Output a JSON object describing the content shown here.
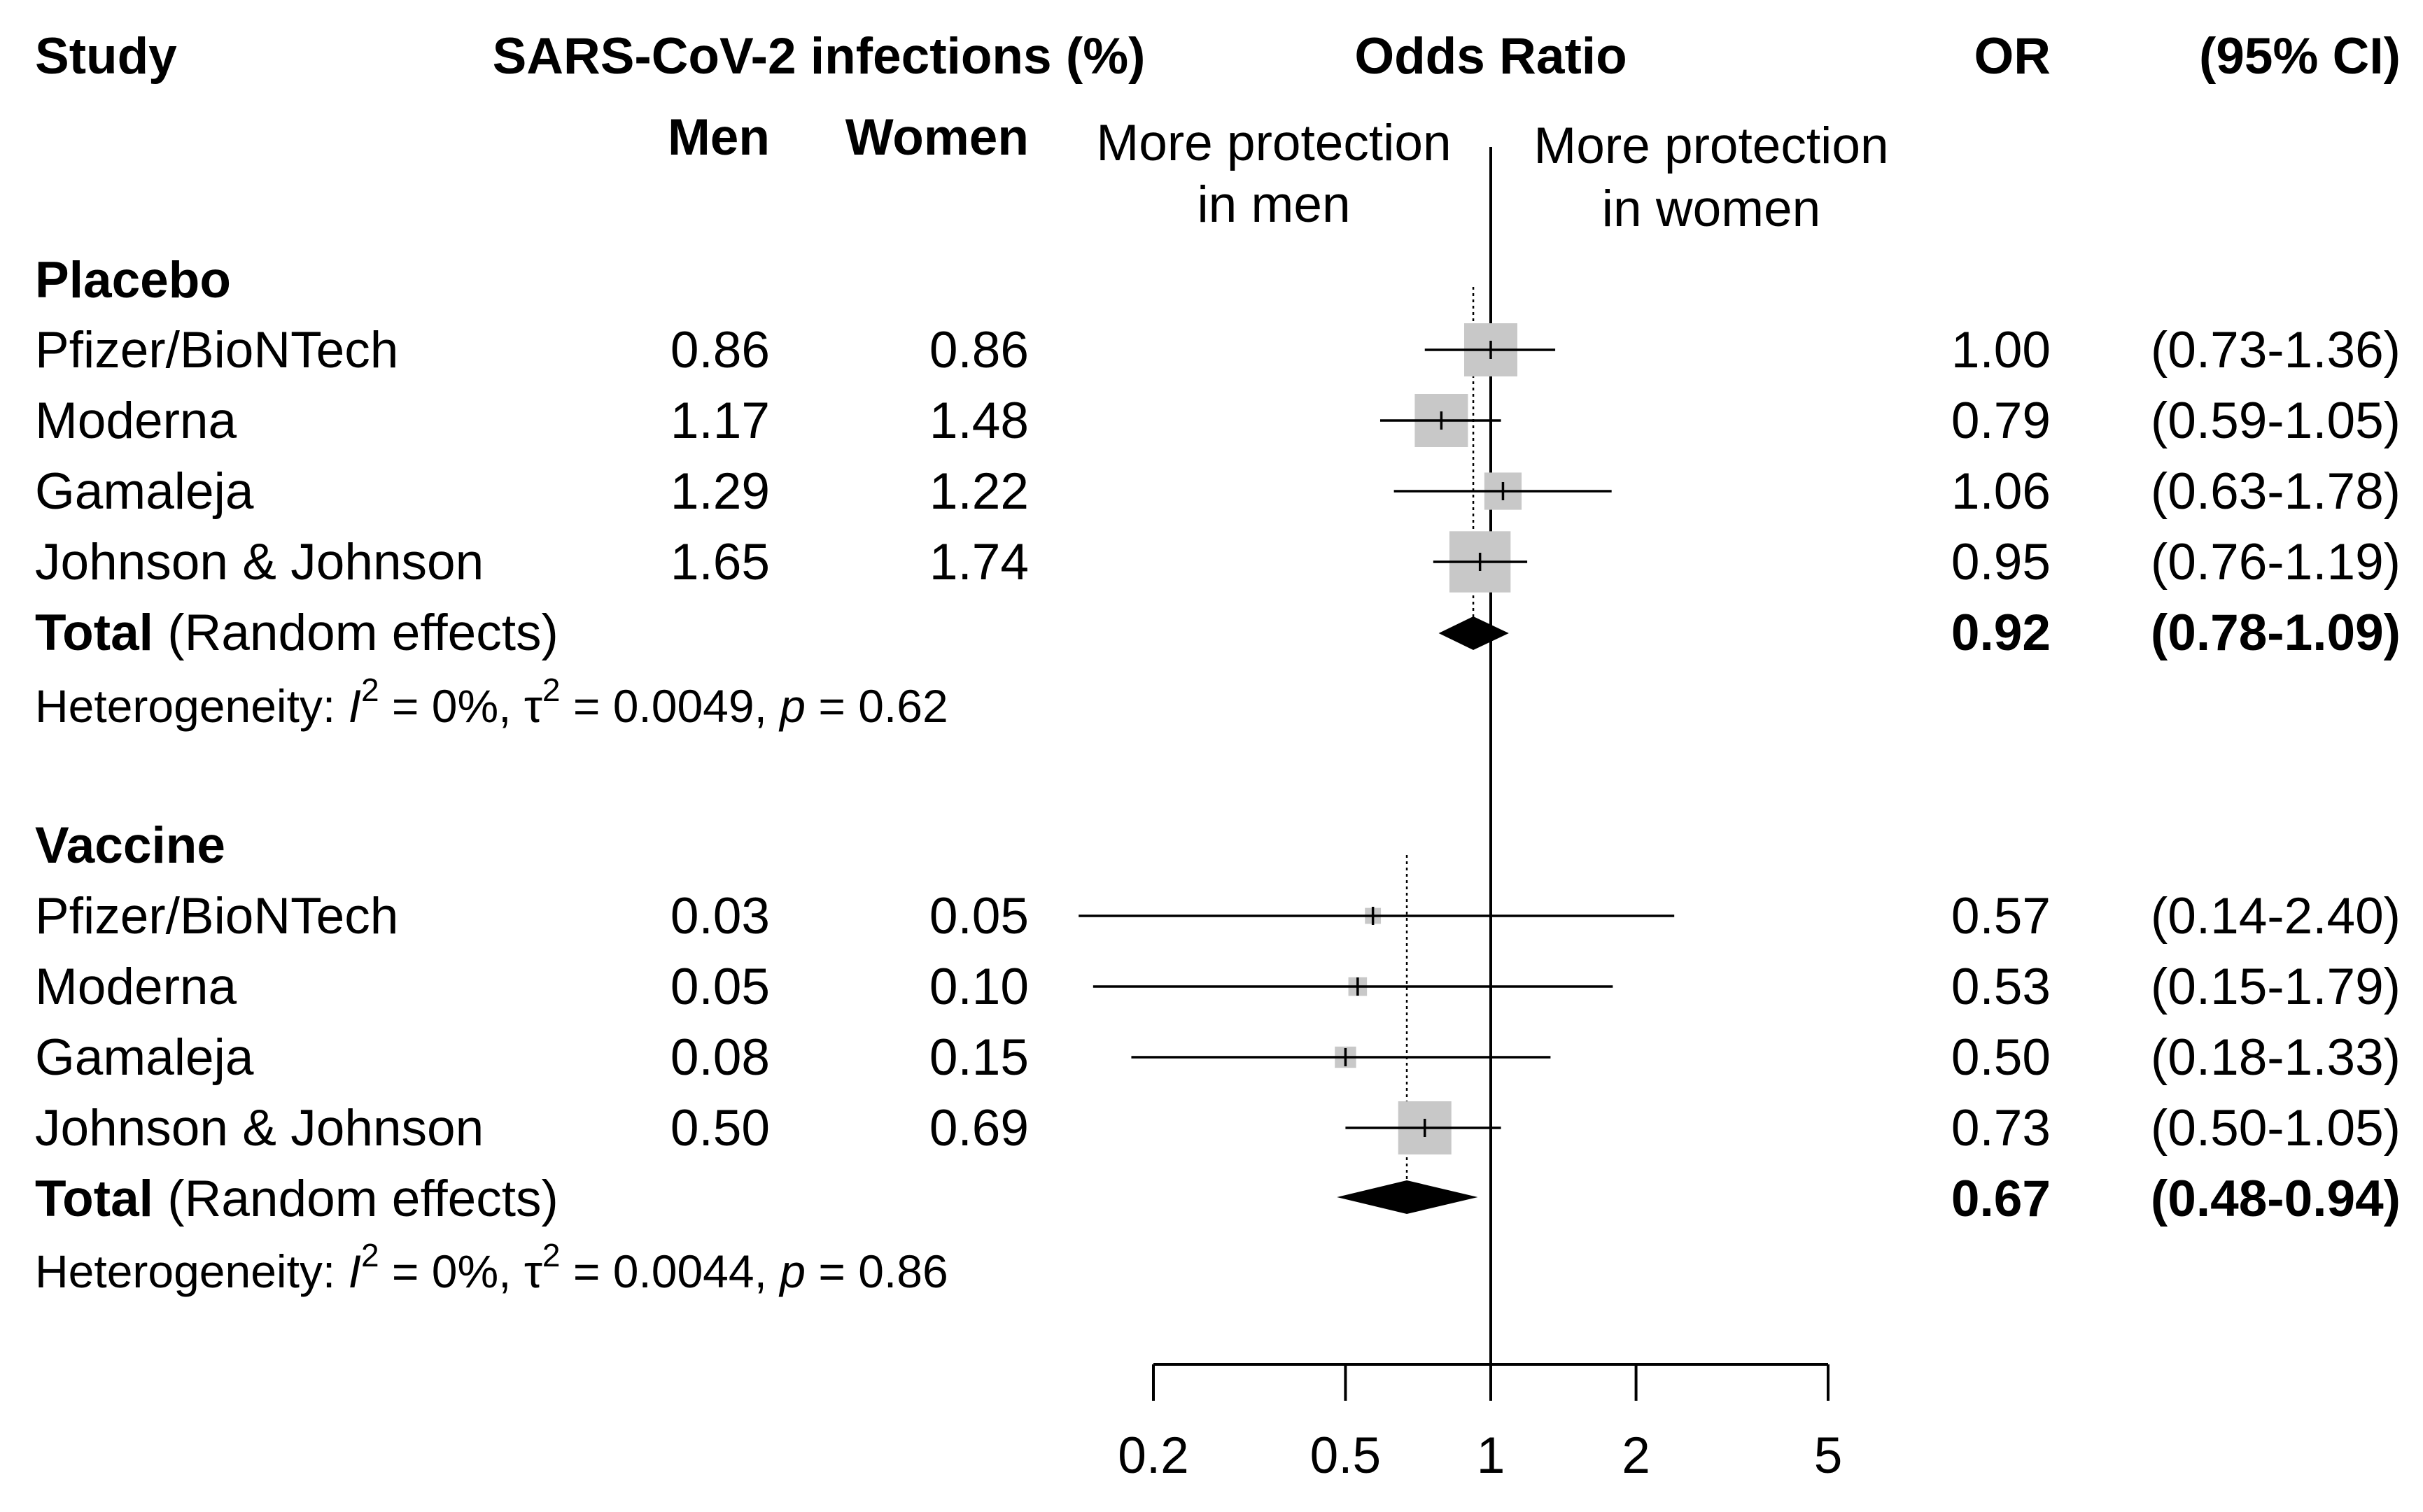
{
  "header": {
    "study": "Study",
    "infections": "SARS-CoV-2 infections (%)",
    "odds_ratio": "Odds Ratio",
    "or": "OR",
    "ci": "(95% CI)",
    "men": "Men",
    "women": "Women",
    "left_line1": "More protection",
    "left_line2": "in men",
    "right_line1": "More protection",
    "right_line2": "in women"
  },
  "groups": [
    {
      "name": "Placebo",
      "studies": [
        {
          "study": "Pfizer/BioNTech",
          "men": "0.86",
          "women": "0.86",
          "or": "1.00",
          "ci": "(0.73-1.36)"
        },
        {
          "study": "Moderna",
          "men": "1.17",
          "women": "1.48",
          "or": "0.79",
          "ci": "(0.59-1.05)"
        },
        {
          "study": "Gamaleja",
          "men": "1.29",
          "women": "1.22",
          "or": "1.06",
          "ci": "(0.63-1.78)"
        },
        {
          "study": "Johnson & Johnson",
          "men": "1.65",
          "women": "1.74",
          "or": "0.95",
          "ci": "(0.76-1.19)"
        }
      ],
      "total_label": "Total",
      "total_suffix": "(Random effects)",
      "total_or": "0.92",
      "total_ci": "(0.78-1.09)",
      "het_prefix": "Heterogeneity: ",
      "het_i": "I",
      "het_two": "2",
      "het_mid": " = 0%, τ",
      "het_tau_val": " = 0.0049, ",
      "het_p": "p",
      "het_pval": " = 0.62"
    },
    {
      "name": "Vaccine",
      "studies": [
        {
          "study": "Pfizer/BioNTech",
          "men": "0.03",
          "women": "0.05",
          "or": "0.57",
          "ci": "(0.14-2.40)"
        },
        {
          "study": "Moderna",
          "men": "0.05",
          "women": "0.10",
          "or": "0.53",
          "ci": "(0.15-1.79)"
        },
        {
          "study": "Gamaleja",
          "men": "0.08",
          "women": "0.15",
          "or": "0.50",
          "ci": "(0.18-1.33)"
        },
        {
          "study": "Johnson & Johnson",
          "men": "0.50",
          "women": "0.69",
          "or": "0.73",
          "ci": "(0.50-1.05)"
        }
      ],
      "total_label": "Total",
      "total_suffix": "(Random effects)",
      "total_or": "0.67",
      "total_ci": "(0.48-0.94)",
      "het_prefix": "Heterogeneity: ",
      "het_i": "I",
      "het_two": "2",
      "het_mid": " = 0%, τ",
      "het_tau_val": " = 0.0044, ",
      "het_p": "p",
      "het_pval": " = 0.86"
    }
  ],
  "chart_data": {
    "type": "forest",
    "x_scale": "log",
    "xlim": [
      0.2,
      5
    ],
    "reference_line": 1,
    "x_ticks": [
      0.2,
      0.5,
      1,
      2,
      5
    ],
    "x_tick_labels": [
      "0.2",
      "0.5",
      "1",
      "2",
      "5"
    ],
    "series": [
      {
        "name": "Placebo",
        "studies": [
          {
            "label": "Pfizer/BioNTech",
            "or": 1.0,
            "lo": 0.73,
            "hi": 1.36,
            "weight": 1.0
          },
          {
            "label": "Moderna",
            "or": 0.79,
            "lo": 0.59,
            "hi": 1.05,
            "weight": 1.0
          },
          {
            "label": "Gamaleja",
            "or": 1.06,
            "lo": 0.63,
            "hi": 1.78,
            "weight": 0.7
          },
          {
            "label": "Johnson & Johnson",
            "or": 0.95,
            "lo": 0.76,
            "hi": 1.19,
            "weight": 1.15
          }
        ],
        "pooled": {
          "or": 0.92,
          "lo": 0.78,
          "hi": 1.09
        }
      },
      {
        "name": "Vaccine",
        "studies": [
          {
            "label": "Pfizer/BioNTech",
            "or": 0.57,
            "lo": 0.14,
            "hi": 2.4,
            "weight": 0.3
          },
          {
            "label": "Moderna",
            "or": 0.53,
            "lo": 0.15,
            "hi": 1.79,
            "weight": 0.35
          },
          {
            "label": "Gamaleja",
            "or": 0.5,
            "lo": 0.18,
            "hi": 1.33,
            "weight": 0.4
          },
          {
            "label": "Johnson & Johnson",
            "or": 0.73,
            "lo": 0.5,
            "hi": 1.05,
            "weight": 1.0
          }
        ],
        "pooled": {
          "or": 0.67,
          "lo": 0.48,
          "hi": 0.94
        }
      }
    ],
    "colors": {
      "box": "#c8c8c8",
      "line": "#000000",
      "diamond": "#000000"
    }
  }
}
